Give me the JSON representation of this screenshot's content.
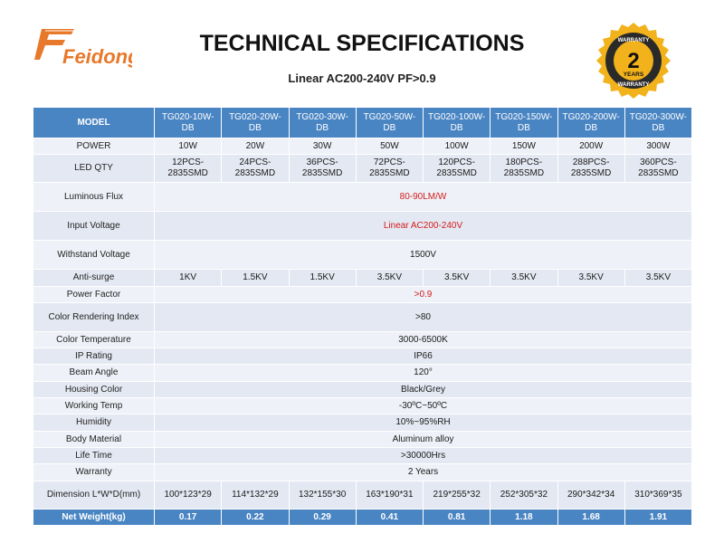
{
  "brand": {
    "logo_text": "Feidong"
  },
  "title": "TECHNICAL SPECIFICATIONS",
  "subtitle": "Linear AC200-240V PF>0.9",
  "badge": {
    "top_text": "WARRANTY",
    "number": "2",
    "years": "YEARS",
    "bottom_text": "WARRANTY"
  },
  "colors": {
    "header_blue": "#4a85c3",
    "highlight_red": "#d21c1c",
    "logo_orange": "#e8782a",
    "badge_gold": "#f2b21c"
  },
  "table": {
    "header_label": "MODEL",
    "models": [
      "TG020-10W-DB",
      "TG020-20W-DB",
      "TG020-30W-DB",
      "TG020-50W-DB",
      "TG020-100W-DB",
      "TG020-150W-DB",
      "TG020-200W-DB",
      "TG020-300W-DB"
    ],
    "rows": {
      "power": {
        "label": "POWER",
        "values": [
          "10W",
          "20W",
          "30W",
          "50W",
          "100W",
          "150W",
          "200W",
          "300W"
        ]
      },
      "led_qty": {
        "label": "LED QTY",
        "values": [
          "12PCS-2835SMD",
          "24PCS-2835SMD",
          "36PCS-2835SMD",
          "72PCS-2835SMD",
          "120PCS-2835SMD",
          "180PCS-2835SMD",
          "288PCS-2835SMD",
          "360PCS-2835SMD"
        ]
      },
      "luminous_flux": {
        "label": "Luminous Flux",
        "value": "80-90LM/W"
      },
      "input_voltage": {
        "label": "Input Voltage",
        "value": "Linear AC200-240V"
      },
      "withstand_voltage": {
        "label": "Withstand Voltage",
        "value": "1500V"
      },
      "anti_surge": {
        "label": "Anti-surge",
        "values": [
          "1KV",
          "1.5KV",
          "1.5KV",
          "3.5KV",
          "3.5KV",
          "3.5KV",
          "3.5KV",
          "3.5KV"
        ]
      },
      "power_factor": {
        "label": "Power Factor",
        "value": ">0.9"
      },
      "cri": {
        "label": "Color Rendering Index",
        "value": ">80"
      },
      "color_temp": {
        "label": "Color Temperature",
        "value": "3000-6500K"
      },
      "ip_rating": {
        "label": "IP Rating",
        "value": "IP66"
      },
      "beam_angle": {
        "label": "Beam Angle",
        "value": "120°"
      },
      "housing_color": {
        "label": "Housing Color",
        "value": "Black/Grey"
      },
      "working_temp": {
        "label": "Working Temp",
        "value": "-30ºC~50ºC"
      },
      "humidity": {
        "label": "Humidity",
        "value": "10%~95%RH"
      },
      "body_material": {
        "label": "Body Material",
        "value": "Aluminum alloy"
      },
      "life_time": {
        "label": "Life Time",
        "value": ">30000Hrs"
      },
      "warranty": {
        "label": "Warranty",
        "value": "2 Years"
      },
      "dimension": {
        "label": "Dimension L*W*D(mm)",
        "values": [
          "100*123*29",
          "114*132*29",
          "132*155*30",
          "163*190*31",
          "219*255*32",
          "252*305*32",
          "290*342*34",
          "310*369*35"
        ]
      },
      "net_weight": {
        "label": "Net Weight(kg)",
        "values": [
          "0.17",
          "0.22",
          "0.29",
          "0.41",
          "0.81",
          "1.18",
          "1.68",
          "1.91"
        ]
      }
    }
  }
}
